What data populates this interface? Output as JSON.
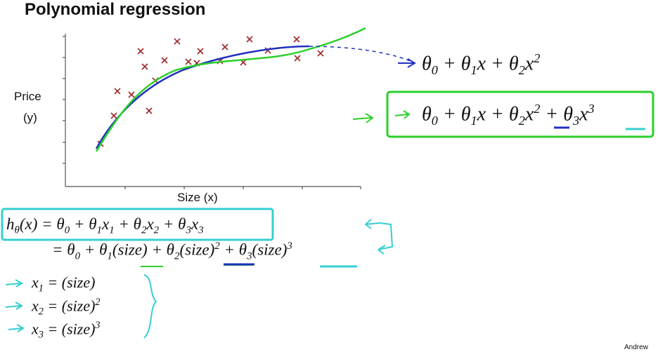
{
  "title": "Polynomial regression",
  "plot": {
    "y_label_1": "Price",
    "y_label_2": "(y)",
    "x_label": "Size (x)"
  },
  "formulas": {
    "quadratic": [
      "θ",
      {
        "sub": "0"
      },
      " + θ",
      {
        "sub": "1"
      },
      "x + θ",
      {
        "sub": "2"
      },
      "x",
      {
        "sup": "2"
      }
    ],
    "cubic": [
      "θ",
      {
        "sub": "0"
      },
      " + θ",
      {
        "sub": "1"
      },
      "x + θ",
      {
        "sub": "2"
      },
      "x",
      {
        "sup": "2"
      },
      " + θ",
      {
        "sub": "3"
      },
      "x",
      {
        "sup": "3"
      }
    ],
    "hypothesis": [
      "h",
      {
        "sub": "θ"
      },
      "(x) = θ",
      {
        "sub": "0"
      },
      " + θ",
      {
        "sub": "1"
      },
      "x",
      {
        "sub": "1"
      },
      " + θ",
      {
        "sub": "2"
      },
      "x",
      {
        "sub": "2"
      },
      " + θ",
      {
        "sub": "3"
      },
      "x",
      {
        "sub": "3"
      }
    ],
    "expanded": [
      "= θ",
      {
        "sub": "0"
      },
      " + θ",
      {
        "sub": "1"
      },
      "(size) + θ",
      {
        "sub": "2"
      },
      "(size)",
      {
        "sup": "2"
      },
      " + θ",
      {
        "sub": "3"
      },
      "(size)",
      {
        "sup": "3"
      }
    ],
    "x1": [
      "x",
      {
        "sub": "1"
      },
      " = (size)"
    ],
    "x2": [
      "x",
      {
        "sub": "2"
      },
      " = (size)",
      {
        "sup": "2"
      }
    ],
    "x3": [
      "x",
      {
        "sub": "3"
      },
      " = (size)",
      {
        "sup": "3"
      }
    ]
  },
  "footer": "Andrew"
}
